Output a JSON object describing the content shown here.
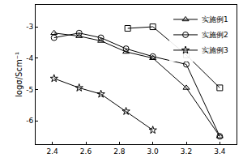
{
  "chart_data": {
    "type": "line",
    "y_label": "logσ/Scm⁻¹",
    "xlim": [
      2.3,
      3.5
    ],
    "xticks": [
      2.4,
      2.6,
      2.8,
      3.0,
      3.2,
      3.4
    ],
    "ylim": [
      -6.75,
      -2.3
    ],
    "yticks": [
      -6,
      -5,
      -4,
      -3
    ],
    "grid": false,
    "legend": "upper right",
    "series": [
      {
        "name": null,
        "color": "#000000",
        "marker": "square-open",
        "line_style": "solid",
        "x": [
          2.85,
          3.0,
          3.2,
          3.4
        ],
        "values": [
          -3.05,
          -3.0,
          -3.9,
          -4.95
        ]
      },
      {
        "name": "实施例1",
        "color": "#000000",
        "marker": "triangle-up-open",
        "line_style": "solid",
        "x": [
          2.41,
          2.56,
          2.69,
          2.84,
          3.0,
          3.2,
          3.4
        ],
        "values": [
          -3.2,
          -3.3,
          -3.45,
          -3.8,
          -4.0,
          -4.95,
          -6.5
        ]
      },
      {
        "name": "实施例2",
        "color": "#000000",
        "marker": "circle-open",
        "line_style": "solid",
        "x": [
          2.41,
          2.56,
          2.69,
          2.84,
          3.0,
          3.2,
          3.4
        ],
        "values": [
          -3.35,
          -3.2,
          -3.35,
          -3.7,
          -3.95,
          -4.2,
          -6.5
        ]
      },
      {
        "name": "实施例3",
        "color": "#000000",
        "marker": "star-open",
        "line_style": "solid",
        "x": [
          2.41,
          2.56,
          2.69,
          2.84,
          3.0
        ],
        "values": [
          -4.65,
          -4.95,
          -5.15,
          -5.7,
          -6.3
        ]
      }
    ]
  }
}
